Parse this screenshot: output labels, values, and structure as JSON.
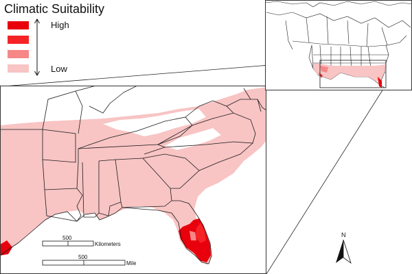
{
  "legend": {
    "title": "Climatic Suitability",
    "high_label": "High",
    "low_label": "Low",
    "classes": [
      {
        "level": "very-high",
        "color": "#e8000c"
      },
      {
        "level": "high",
        "color": "#f52326"
      },
      {
        "level": "medium",
        "color": "#f78686"
      },
      {
        "level": "low",
        "color": "#f8c4c4"
      }
    ]
  },
  "scalebar": {
    "km_value": "500",
    "km_unit": "Kilometers",
    "mi_value": "500",
    "mi_unit": "Miles"
  },
  "north_arrow": {
    "label": "N"
  },
  "colors": {
    "state_outline": "#1a1a1a",
    "low_fill": "#f8c4c4",
    "high_fill": "#e8000c",
    "frame": "#333333"
  }
}
